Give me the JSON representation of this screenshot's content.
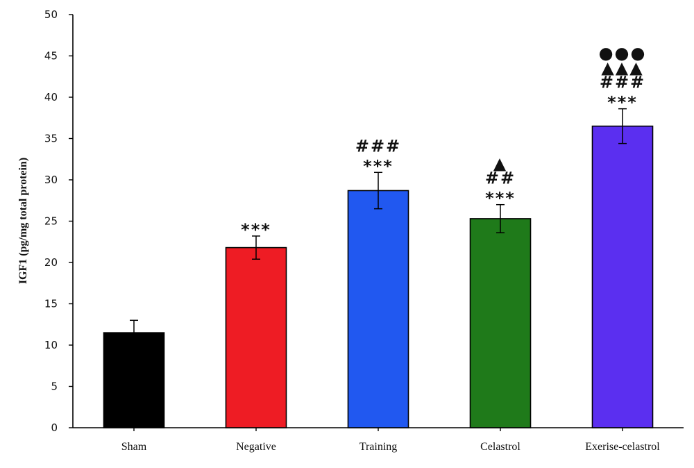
{
  "chart_data": {
    "type": "bar",
    "title": "",
    "xlabel": "",
    "ylabel": "IGF1 (pg/mg total protein)",
    "ylim": [
      0,
      50
    ],
    "yticks": [
      0,
      5,
      10,
      15,
      20,
      25,
      30,
      35,
      40,
      45,
      50
    ],
    "grid": false,
    "legend": "none",
    "categories": [
      "Sham",
      "Negative",
      "Training",
      "Celastrol",
      "Exerise-celastrol"
    ],
    "values": [
      11.5,
      21.8,
      28.7,
      25.3,
      36.5
    ],
    "errors": [
      1.5,
      1.4,
      2.2,
      1.7,
      2.1
    ],
    "colors": [
      "#000000",
      "#ee1c24",
      "#2158f0",
      "#1f7a1a",
      "#5b2ff0"
    ],
    "significance": [
      [],
      [
        "***"
      ],
      [
        "***",
        "###"
      ],
      [
        "***",
        "##",
        "▲"
      ],
      [
        "***",
        "###",
        "▲▲▲",
        "●●●"
      ]
    ]
  }
}
